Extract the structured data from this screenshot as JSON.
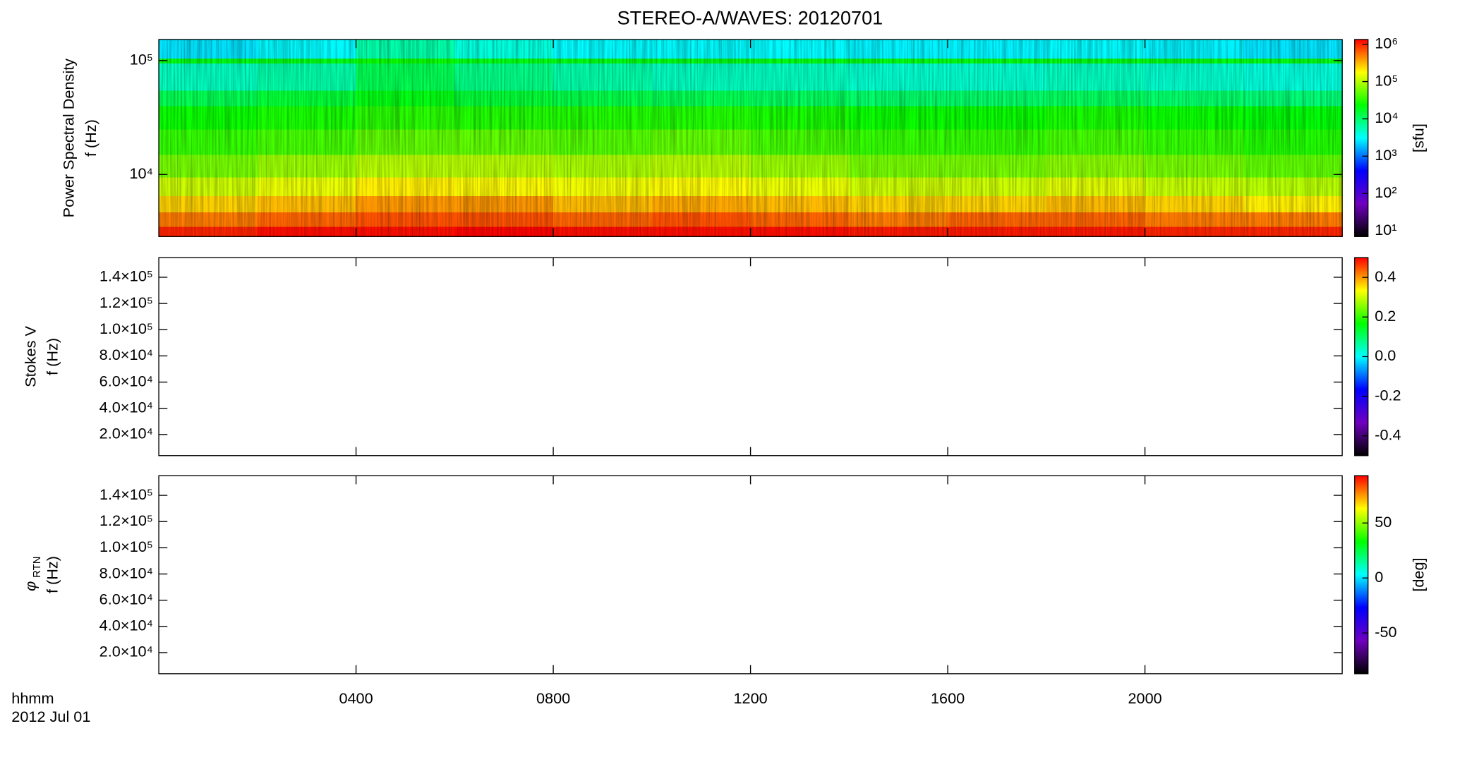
{
  "chart_data": {
    "type": "heatmap",
    "title": "STEREO-A/WAVES: 20120701",
    "x_label": "hhmm",
    "date_label": "2012 Jul 01",
    "xlim": [
      0,
      24
    ],
    "xticks": [
      {
        "value": 4,
        "label": "0400"
      },
      {
        "value": 8,
        "label": "0800"
      },
      {
        "value": 12,
        "label": "1200"
      },
      {
        "value": 16,
        "label": "1600"
      },
      {
        "value": 20,
        "label": "2000"
      }
    ],
    "colormap": [
      "#000000",
      "#7000c0",
      "#0000ff",
      "#00ffff",
      "#00ff00",
      "#ffff00",
      "#ff0000"
    ],
    "panels": [
      {
        "ylabel": [
          "Power Spectral Density",
          "f (Hz)"
        ],
        "ylog": true,
        "ylim": [
          2850,
          153000
        ],
        "yticks": [
          {
            "value": 10000,
            "label": "10⁴"
          },
          {
            "value": 100000,
            "label": "10⁵"
          }
        ],
        "zlog": true,
        "zlim": [
          7,
          1340000
        ],
        "zticks": [
          {
            "value": 10,
            "label": "10¹"
          },
          {
            "value": 100,
            "label": "10²"
          },
          {
            "value": 1000,
            "label": "10³"
          },
          {
            "value": 10000,
            "label": "10⁴"
          },
          {
            "value": 100000,
            "label": "10⁵"
          },
          {
            "value": 1000000,
            "label": "10⁶"
          }
        ],
        "zlabel": "[sfu]",
        "x_edges": [
          0,
          2,
          4,
          6,
          8,
          10,
          12,
          14,
          16,
          18,
          20,
          22,
          24
        ],
        "y_edges": [
          2850,
          3500,
          4700,
          6500,
          9500,
          15000,
          25000,
          40000,
          55000,
          95000,
          105000,
          153000
        ],
        "z": [
          [
            1000000,
            1200000,
            1200000,
            1300000,
            1200000,
            1200000,
            1200000,
            1100000,
            1100000,
            1100000,
            1000000,
            1000000
          ],
          [
            500000,
            600000,
            700000,
            700000,
            600000,
            700000,
            600000,
            500000,
            600000,
            600000,
            500000,
            500000
          ],
          [
            250000,
            300000,
            400000,
            400000,
            300000,
            350000,
            300000,
            250000,
            250000,
            300000,
            250000,
            200000
          ],
          [
            120000,
            150000,
            200000,
            180000,
            160000,
            180000,
            150000,
            120000,
            120000,
            140000,
            110000,
            100000
          ],
          [
            60000,
            80000,
            100000,
            100000,
            90000,
            100000,
            80000,
            60000,
            60000,
            70000,
            60000,
            50000
          ],
          [
            35000,
            40000,
            50000,
            50000,
            45000,
            50000,
            40000,
            35000,
            35000,
            40000,
            35000,
            30000
          ],
          [
            25000,
            28000,
            32000,
            30000,
            30000,
            30000,
            28000,
            25000,
            25000,
            28000,
            25000,
            22000
          ],
          [
            12000,
            15000,
            20000,
            15000,
            13000,
            12000,
            11000,
            10000,
            10000,
            11000,
            10000,
            9000
          ],
          [
            5000,
            6000,
            12000,
            8000,
            6000,
            5000,
            5000,
            4500,
            4500,
            5000,
            4500,
            4000
          ],
          [
            20000,
            20000,
            25000,
            20000,
            20000,
            20000,
            20000,
            20000,
            20000,
            20000,
            20000,
            20000
          ],
          [
            2500,
            3000,
            6000,
            4000,
            3000,
            3000,
            3000,
            2800,
            2800,
            3000,
            2800,
            2500
          ]
        ]
      },
      {
        "ylabel": [
          "Stokes V",
          "f (Hz)"
        ],
        "ylog": false,
        "ylim": [
          3900,
          155000
        ],
        "yticks": [
          {
            "value": 20000,
            "label": "2.0×10⁴"
          },
          {
            "value": 40000,
            "label": "4.0×10⁴"
          },
          {
            "value": 60000,
            "label": "6.0×10⁴"
          },
          {
            "value": 80000,
            "label": "8.0×10⁴"
          },
          {
            "value": 100000,
            "label": "1.0×10⁵"
          },
          {
            "value": 120000,
            "label": "1.2×10⁵"
          },
          {
            "value": 140000,
            "label": "1.4×10⁵"
          }
        ],
        "zlog": false,
        "zlim": [
          -0.5,
          0.5
        ],
        "zticks": [
          -0.4,
          -0.2,
          {
            "value": 0,
            "label": "0.0"
          },
          0.2,
          0.4
        ]
      },
      {
        "ylabel": [
          "f (Hz)"
        ],
        "ylabel_symbol": "φ",
        "ylabel_subscript": "RTN",
        "ylog": false,
        "ylim": [
          3900,
          155000
        ],
        "yticks": [
          {
            "value": 20000,
            "label": "2.0×10⁴"
          },
          {
            "value": 40000,
            "label": "4.0×10⁴"
          },
          {
            "value": 60000,
            "label": "6.0×10⁴"
          },
          {
            "value": 80000,
            "label": "8.0×10⁴"
          },
          {
            "value": 100000,
            "label": "1.0×10⁵"
          },
          {
            "value": 120000,
            "label": "1.2×10⁵"
          },
          {
            "value": 140000,
            "label": "1.4×10⁵"
          }
        ],
        "zlog": false,
        "zlim": [
          -87,
          93
        ],
        "zticks": [
          -50,
          0,
          50
        ],
        "zlabel": "[deg]"
      }
    ]
  }
}
